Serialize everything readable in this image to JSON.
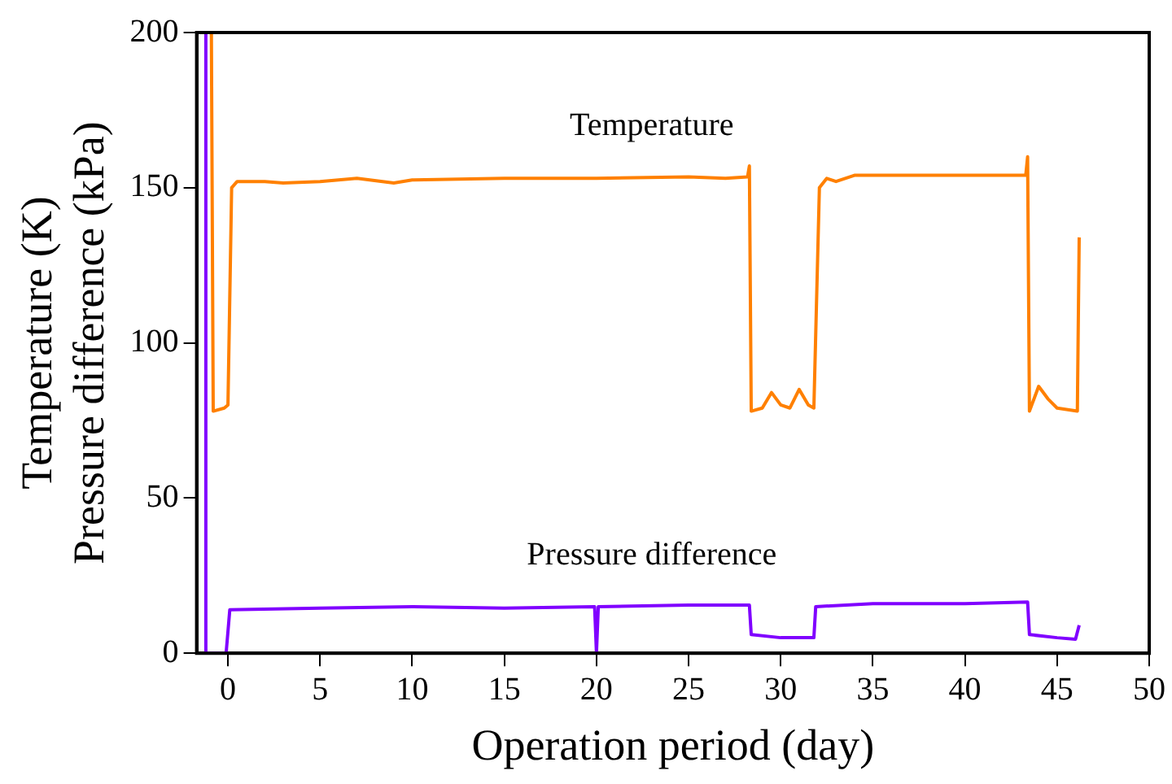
{
  "chart_data": {
    "type": "line",
    "xlabel": "Operation period (day)",
    "ylabel": "Temperature (K)\nPressure difference (kPa)",
    "xlim": [
      -1.7,
      50
    ],
    "xticks": [
      0,
      5,
      10,
      15,
      20,
      25,
      30,
      35,
      40,
      45,
      50
    ],
    "ylim": [
      0,
      200
    ],
    "yticks": [
      0,
      50,
      100,
      150,
      200
    ],
    "grid": false,
    "legend": false,
    "marker": "none",
    "line_style": "solid",
    "series": [
      {
        "name": "Temperature",
        "color": "#ff8000",
        "x": [
          -0.9,
          -0.8,
          -0.2,
          0.0,
          0.2,
          0.5,
          2,
          3,
          5,
          7,
          9,
          10,
          15,
          20,
          25,
          27,
          28.2,
          28.3,
          28.4,
          29,
          29.5,
          30,
          30.5,
          31,
          31.5,
          31.8,
          32.1,
          32.5,
          33,
          34,
          40,
          43.3,
          43.4,
          43.5,
          44,
          44.5,
          45,
          46.1,
          46.2
        ],
        "values": [
          200,
          78,
          79,
          80,
          150,
          152,
          152,
          151.5,
          152,
          153,
          151.5,
          152.5,
          153,
          153,
          153.5,
          153,
          153.5,
          157,
          78,
          79,
          84,
          80,
          79,
          85,
          80,
          79,
          150,
          153,
          152,
          154,
          154,
          154,
          160,
          78,
          86,
          82,
          79,
          78,
          134
        ]
      },
      {
        "name": "Pressure difference",
        "color": "#8000ff",
        "x": [
          -1.2,
          -1.2,
          -0.1,
          0.1,
          5,
          10,
          15,
          19.9,
          20,
          20.1,
          25,
          28.3,
          28.4,
          30,
          31.8,
          31.9,
          35,
          40,
          43.4,
          43.5,
          45,
          46,
          46.2
        ],
        "values": [
          200,
          0,
          0,
          14,
          14.5,
          15,
          14.5,
          15,
          0,
          15,
          15.5,
          15.5,
          6,
          5,
          5,
          15,
          16,
          16,
          16.5,
          6,
          5,
          4.5,
          9
        ]
      }
    ]
  }
}
